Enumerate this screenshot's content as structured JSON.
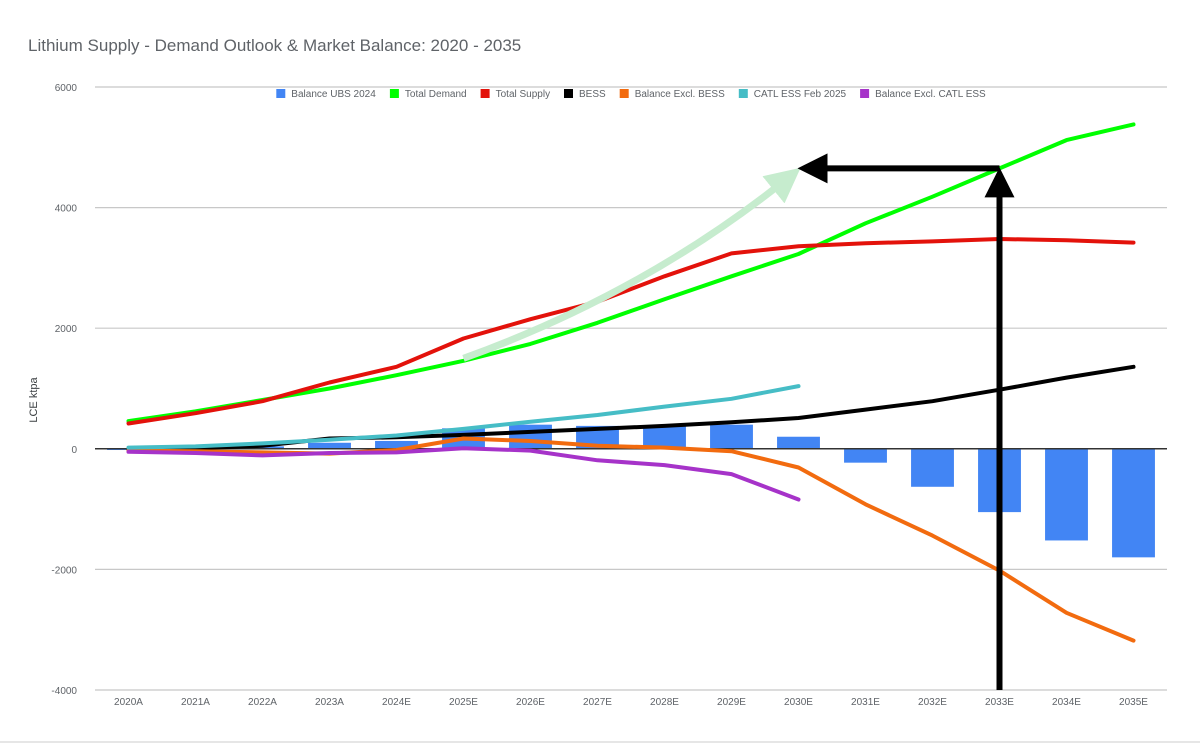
{
  "chart_data": {
    "type": "bar",
    "title": "Lithium Supply - Demand Outlook & Market Balance: 2020 - 2035",
    "ylabel": "LCE  ktpa",
    "xlabel": "",
    "ylim": [
      -4000,
      6000
    ],
    "yticks": [
      6000,
      4000,
      2000,
      0,
      -2000,
      -4000
    ],
    "grid": true,
    "legend_position": "top",
    "categories": [
      "2020A",
      "2021A",
      "2022A",
      "2023A",
      "2024E",
      "2025E",
      "2026E",
      "2027E",
      "2028E",
      "2029E",
      "2030E",
      "2031E",
      "2032E",
      "2033E",
      "2034E",
      "2035E"
    ],
    "series": [
      {
        "name": "Balance UBS 2024",
        "type": "bar",
        "color": "#4285f4",
        "values": [
          -20,
          20,
          40,
          100,
          130,
          340,
          400,
          380,
          390,
          400,
          200,
          -230,
          -630,
          -1050,
          -1520,
          -1800
        ]
      },
      {
        "name": "Total Demand",
        "type": "line",
        "color": "#00ff00",
        "values": [
          460,
          620,
          810,
          1000,
          1220,
          1460,
          1740,
          2090,
          2480,
          2860,
          3230,
          3740,
          4180,
          4650,
          5120,
          5380
        ]
      },
      {
        "name": "Total Supply",
        "type": "line",
        "color": "#e3120b",
        "values": [
          420,
          590,
          790,
          1100,
          1360,
          1830,
          2150,
          2440,
          2860,
          3240,
          3360,
          3410,
          3440,
          3480,
          3460,
          3420
        ]
      },
      {
        "name": "BESS",
        "type": "line",
        "color": "#000000",
        "values": [
          -20,
          10,
          50,
          170,
          190,
          230,
          280,
          330,
          380,
          440,
          510,
          650,
          790,
          980,
          1180,
          1360
        ]
      },
      {
        "name": "Balance Excl. BESS",
        "type": "line",
        "color": "#f26b0f",
        "values": [
          -30,
          -40,
          -60,
          -80,
          -20,
          170,
          130,
          50,
          20,
          -40,
          -310,
          -920,
          -1440,
          -2020,
          -2720,
          -3180
        ]
      },
      {
        "name": "CATL ESS Feb 2025",
        "type": "line",
        "color": "#46bdc6",
        "values": [
          20,
          40,
          90,
          150,
          220,
          330,
          450,
          560,
          700,
          830,
          1040,
          null,
          null,
          null,
          null,
          null
        ]
      },
      {
        "name": "Balance Excl. CATL ESS",
        "type": "line",
        "color": "#a633c9",
        "values": [
          -50,
          -70,
          -110,
          -70,
          -60,
          10,
          -30,
          -190,
          -270,
          -420,
          -840,
          null,
          null,
          null,
          null,
          null
        ]
      }
    ],
    "annotations": [
      {
        "kind": "arrow",
        "color": "#c6ecce",
        "from": {
          "x": "2025E",
          "y": 1500
        },
        "to": {
          "x": "2030E",
          "y": 4650
        }
      },
      {
        "kind": "arrow",
        "color": "#000000",
        "from": {
          "x": "2033E",
          "y": 4650
        },
        "to": {
          "x": "2030E",
          "y": 4650
        }
      },
      {
        "kind": "arrow",
        "color": "#000000",
        "from": {
          "x": "2033E",
          "y": -4000
        },
        "to": {
          "x": "2033E",
          "y": 4650
        }
      }
    ]
  }
}
